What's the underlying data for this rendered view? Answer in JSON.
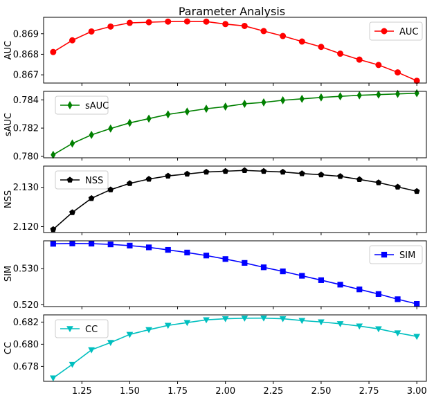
{
  "chart_data": {
    "type": "line",
    "title": "Parameter Analysis",
    "x": [
      1.1,
      1.2,
      1.3,
      1.4,
      1.5,
      1.6,
      1.7,
      1.8,
      1.9,
      2.0,
      2.1,
      2.2,
      2.3,
      2.4,
      2.5,
      2.6,
      2.7,
      2.8,
      2.9,
      3.0
    ],
    "xlim": [
      1.05,
      3.05
    ],
    "xticks": [
      "1.25",
      "1.50",
      "1.75",
      "2.00",
      "2.25",
      "2.50",
      "2.75",
      "3.00"
    ],
    "xtick_values": [
      1.25,
      1.5,
      1.75,
      2.0,
      2.25,
      2.5,
      2.75,
      3.0
    ],
    "panels": [
      {
        "name": "AUC",
        "ylabel": "AUC",
        "color": "#ff0000",
        "marker": "circle",
        "legend": "AUC",
        "legend_position": "upper right",
        "ylim": [
          0.8666,
          0.8698
        ],
        "yticks": [
          "0.867",
          "0.868",
          "0.869"
        ],
        "ytick_values": [
          0.867,
          0.868,
          0.869
        ],
        "values": [
          0.86811,
          0.86868,
          0.86911,
          0.86935,
          0.86953,
          0.86956,
          0.86959,
          0.8696,
          0.86959,
          0.86947,
          0.86938,
          0.86913,
          0.86889,
          0.86862,
          0.86836,
          0.86803,
          0.86774,
          0.86748,
          0.86712,
          0.86671
        ]
      },
      {
        "name": "sAUC",
        "ylabel": "sAUC",
        "color": "#008000",
        "marker": "diamond",
        "legend": "sAUC",
        "legend_position": "upper left",
        "ylim": [
          0.7799,
          0.7846
        ],
        "yticks": [
          "0.780",
          "0.782",
          "0.784"
        ],
        "ytick_values": [
          0.78,
          0.782,
          0.784
        ],
        "values": [
          0.78011,
          0.78091,
          0.78152,
          0.78197,
          0.78237,
          0.78267,
          0.78297,
          0.78317,
          0.78337,
          0.78352,
          0.78372,
          0.78382,
          0.78397,
          0.78407,
          0.78417,
          0.78425,
          0.78432,
          0.78437,
          0.78442,
          0.78447
        ]
      },
      {
        "name": "NSS",
        "ylabel": "NSS",
        "color": "#000000",
        "marker": "pentagon",
        "legend": "NSS",
        "legend_position": "upper left",
        "ylim": [
          2.1185,
          2.1354
        ],
        "yticks": [
          "2.120",
          "2.130"
        ],
        "ytick_values": [
          2.12,
          2.13
        ],
        "values": [
          2.1193,
          2.1236,
          2.1272,
          2.1294,
          2.131,
          2.1321,
          2.1329,
          2.1334,
          2.1339,
          2.1341,
          2.1343,
          2.1341,
          2.1339,
          2.1335,
          2.1332,
          2.1328,
          2.132,
          2.1312,
          2.1301,
          2.129
        ]
      },
      {
        "name": "SIM",
        "ylabel": "SIM",
        "color": "#0000ff",
        "marker": "square",
        "legend": "SIM",
        "legend_position": "upper right",
        "ylim": [
          0.5195,
          0.5377
        ],
        "yticks": [
          "0.520",
          "0.530"
        ],
        "ytick_values": [
          0.52,
          0.53
        ],
        "values": [
          0.53688,
          0.53697,
          0.53692,
          0.53672,
          0.53638,
          0.53589,
          0.5352,
          0.53446,
          0.53363,
          0.53266,
          0.53159,
          0.53037,
          0.52925,
          0.52802,
          0.52681,
          0.52557,
          0.52425,
          0.52297,
          0.52154,
          0.52025
        ]
      },
      {
        "name": "CC",
        "ylabel": "CC",
        "color": "#00bfbf",
        "marker": "triangle-down",
        "legend": "CC",
        "legend_position": "upper left",
        "ylim": [
          0.67665,
          0.68265
        ],
        "yticks": [
          "0.678",
          "0.680",
          "0.682"
        ],
        "ytick_values": [
          0.678,
          0.68,
          0.682
        ],
        "values": [
          0.67695,
          0.67818,
          0.67949,
          0.68015,
          0.68088,
          0.68131,
          0.6817,
          0.68195,
          0.6822,
          0.6823,
          0.68235,
          0.68236,
          0.6823,
          0.68214,
          0.68201,
          0.68185,
          0.68164,
          0.68139,
          0.68102,
          0.6807
        ]
      }
    ]
  }
}
